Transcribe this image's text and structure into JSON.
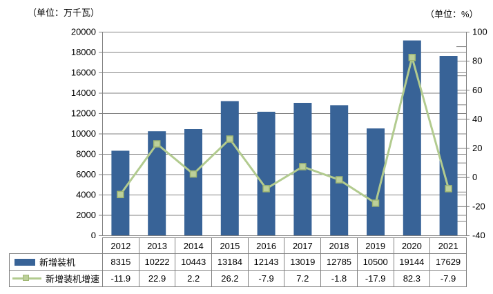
{
  "units": {
    "left": "（单位：万千瓦）",
    "right": "（单位：%）"
  },
  "chart_data": {
    "type": "bar+line combo",
    "categories": [
      "2012",
      "2013",
      "2014",
      "2015",
      "2016",
      "2017",
      "2018",
      "2019",
      "2020",
      "2021"
    ],
    "series": [
      {
        "name": "新增装机",
        "type": "bar",
        "axis": "left",
        "values": [
          8315,
          10222,
          10443,
          13184,
          12143,
          13019,
          12785,
          10500,
          19144,
          17629
        ],
        "color": "#386397"
      },
      {
        "name": "新增装机增速",
        "type": "line",
        "axis": "right",
        "values": [
          -11.9,
          22.9,
          2.2,
          26.2,
          -7.9,
          7.2,
          -1.8,
          -17.9,
          82.3,
          -7.9
        ],
        "color": "#B2CB8F",
        "marker_fill": "#BCD09A",
        "marker_border": "#9FB673"
      }
    ],
    "left_axis": {
      "min": 0,
      "max": 20000,
      "step": 2000,
      "ticks": [
        "20000",
        "18000",
        "16000",
        "14000",
        "12000",
        "10000",
        "8000",
        "6000",
        "4000",
        "2000",
        "0"
      ]
    },
    "right_axis": {
      "min": -40,
      "max": 100,
      "step": 20,
      "minor_step": 10,
      "ticks": [
        "100",
        "80",
        "60",
        "40",
        "20",
        "0",
        "-20",
        "-40"
      ]
    },
    "grid": true,
    "legend_position": "attached-data-table-left",
    "style": {
      "grid_color": "#808080",
      "axis_color": "#808080",
      "text_color": "#000000",
      "background": "#ffffff"
    }
  },
  "table": {
    "rows": [
      {
        "label": "新增装机",
        "values": [
          "8315",
          "10222",
          "10443",
          "13184",
          "12143",
          "13019",
          "12785",
          "10500",
          "19144",
          "17629"
        ]
      },
      {
        "label": "新增装机增速",
        "values": [
          "-11.9",
          "22.9",
          "2.2",
          "26.2",
          "-7.9",
          "7.2",
          "-1.8",
          "-17.9",
          "82.3",
          "-7.9"
        ]
      }
    ]
  }
}
